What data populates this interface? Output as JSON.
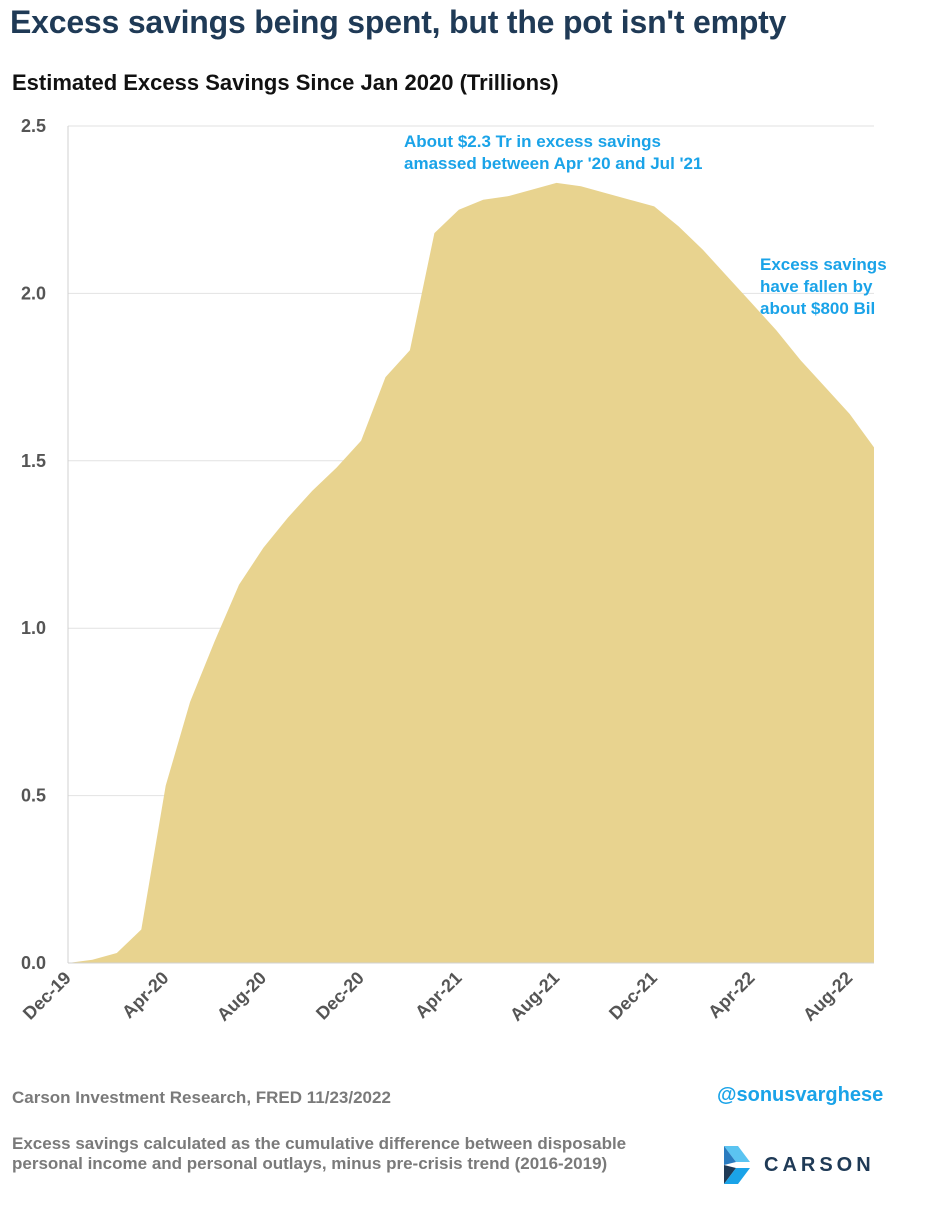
{
  "header": {
    "title": "Excess savings being spent, but the pot isn't empty",
    "subtitle": "Estimated Excess Savings Since Jan 2020 (Trillions)"
  },
  "chart_data": {
    "type": "area",
    "title": "Estimated Excess Savings Since Jan 2020 (Trillions)",
    "xlabel": "",
    "ylabel": "",
    "ylim": [
      0,
      2.5
    ],
    "yticks": [
      0.0,
      0.5,
      1.0,
      1.5,
      2.0,
      2.5
    ],
    "ytick_labels": [
      "0.0",
      "0.5",
      "1.0",
      "1.5",
      "2.0",
      "2.5"
    ],
    "xtick_labels": [
      "Dec-19",
      "Apr-20",
      "Aug-20",
      "Dec-20",
      "Apr-21",
      "Aug-21",
      "Dec-21",
      "Apr-22",
      "Aug-22"
    ],
    "grid": true,
    "fill_color": "#e8d38f",
    "x": [
      "Dec-19",
      "Jan-20",
      "Feb-20",
      "Mar-20",
      "Apr-20",
      "May-20",
      "Jun-20",
      "Jul-20",
      "Aug-20",
      "Sep-20",
      "Oct-20",
      "Nov-20",
      "Dec-20",
      "Jan-21",
      "Feb-21",
      "Mar-21",
      "Apr-21",
      "May-21",
      "Jun-21",
      "Jul-21",
      "Aug-21",
      "Sep-21",
      "Oct-21",
      "Nov-21",
      "Dec-21",
      "Jan-22",
      "Feb-22",
      "Mar-22",
      "Apr-22",
      "May-22",
      "Jun-22",
      "Jul-22",
      "Aug-22",
      "Sep-22"
    ],
    "series": [
      {
        "values": [
          0.0,
          0.01,
          0.03,
          0.1,
          0.53,
          0.78,
          0.96,
          1.13,
          1.24,
          1.33,
          1.41,
          1.48,
          1.56,
          1.75,
          1.83,
          2.18,
          2.25,
          2.28,
          2.29,
          2.31,
          2.33,
          2.32,
          2.3,
          2.28,
          2.26,
          2.2,
          2.13,
          2.05,
          1.97,
          1.89,
          1.8,
          1.72,
          1.64,
          1.54
        ]
      }
    ],
    "annotations": [
      {
        "lines": [
          "About  $2.3 Tr in excess savings",
          "amassed between Apr '20 and Jul '21"
        ]
      },
      {
        "lines": [
          "Excess savings",
          "have fallen by",
          "about $800 Bil"
        ]
      }
    ]
  },
  "footer": {
    "source": "Carson Investment Research, FRED   11/23/2022",
    "handle": "@sonusvarghese",
    "note": "Excess savings calculated as the cumulative difference between disposable personal income and personal outlays, minus pre-crisis trend (2016-2019)",
    "logo_text": "CARSON"
  }
}
